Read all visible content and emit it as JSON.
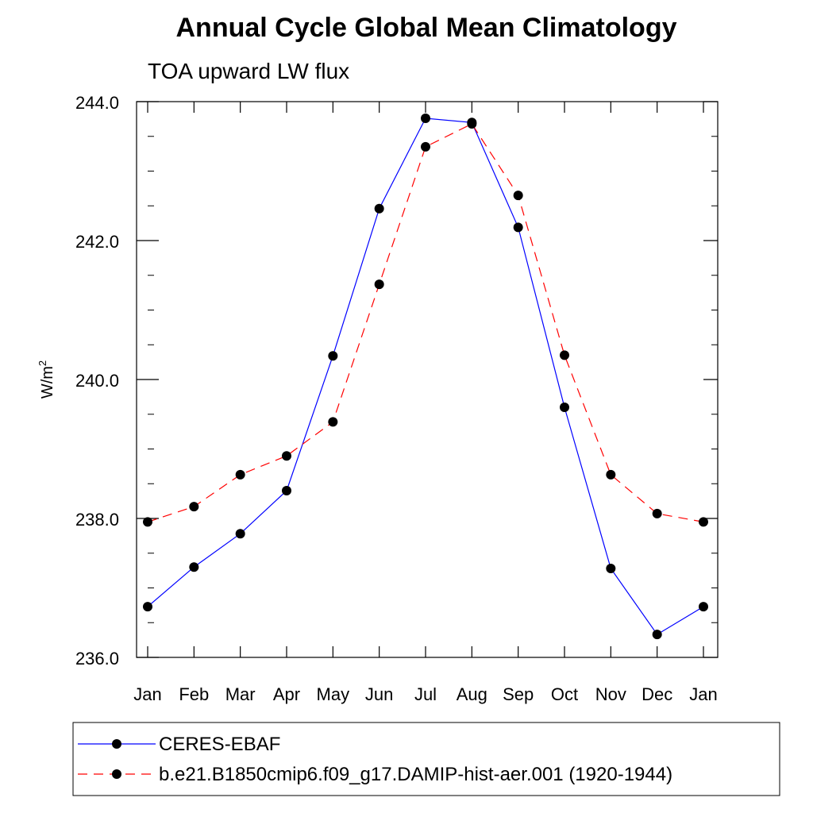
{
  "chart_data": {
    "type": "line",
    "title": "Annual Cycle Global Mean Climatology",
    "subtitle": "TOA upward LW flux",
    "ylabel_base": "W/m",
    "ylabel_sup": "2",
    "categories": [
      "Jan",
      "Feb",
      "Mar",
      "Apr",
      "May",
      "Jun",
      "Jul",
      "Aug",
      "Sep",
      "Oct",
      "Nov",
      "Dec",
      "Jan"
    ],
    "yticks": [
      "236.0",
      "238.0",
      "240.0",
      "242.0",
      "244.0"
    ],
    "ylim": [
      236.0,
      244.0
    ],
    "grid": false,
    "legend_position": "bottom",
    "series": [
      {
        "name": "CERES-EBAF",
        "color": "#0000ff",
        "dash": "solid",
        "values": [
          236.73,
          237.3,
          237.78,
          238.4,
          240.34,
          242.46,
          243.76,
          243.7,
          242.19,
          239.6,
          237.28,
          236.33,
          236.73
        ]
      },
      {
        "name": "b.e21.B1850cmip6.f09_g17.DAMIP-hist-aer.001 (1920-1944)",
        "color": "#ff0000",
        "dash": "dashed",
        "values": [
          237.95,
          238.17,
          238.63,
          238.9,
          239.39,
          241.37,
          243.35,
          243.68,
          242.65,
          240.35,
          238.63,
          238.07,
          237.95
        ]
      }
    ]
  }
}
